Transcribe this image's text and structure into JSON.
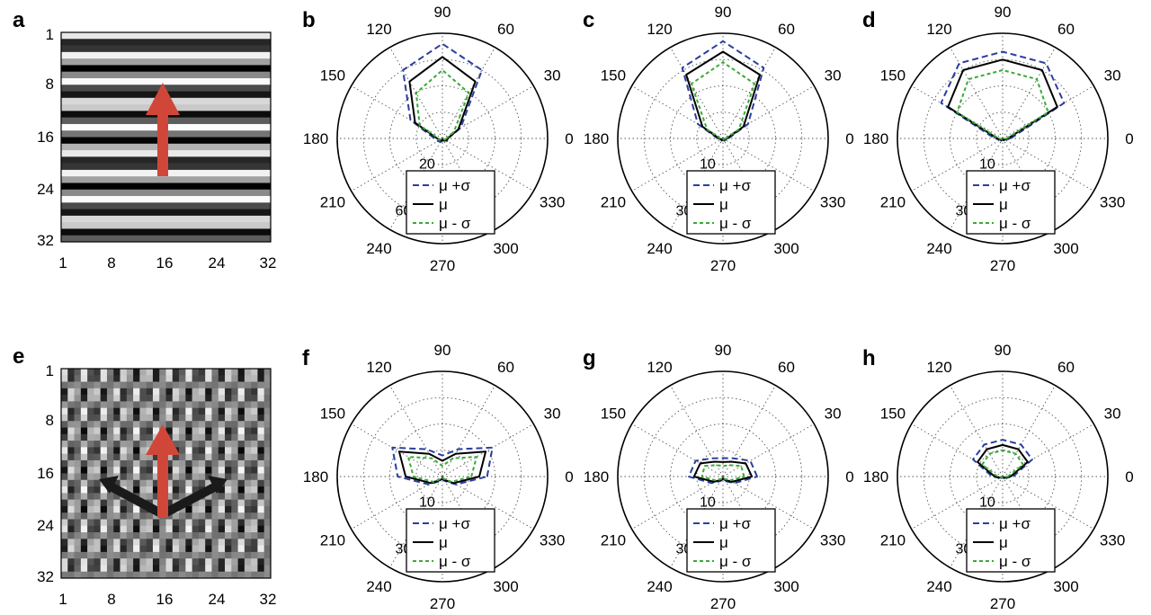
{
  "panels": {
    "a": {
      "letter": "a",
      "y_ticks": [
        "1",
        "8",
        "16",
        "24",
        "32"
      ],
      "x_ticks": [
        "1",
        "8",
        "16",
        "24",
        "32"
      ],
      "pattern": "horizontal-stripes"
    },
    "e": {
      "letter": "e",
      "y_ticks": [
        "1",
        "8",
        "16",
        "24",
        "32"
      ],
      "x_ticks": [
        "1",
        "8",
        "16",
        "24",
        "32"
      ],
      "pattern": "oblique-grid"
    }
  },
  "colors": {
    "mu_plus_sigma": "#2b3e9e",
    "mu": "#000000",
    "mu_minus_sigma": "#3aaa35",
    "arrow_red": "#d0473a",
    "arrow_black": "#1a1a1a"
  },
  "chart_data": [
    {
      "type": "line",
      "coord": "polar",
      "panel": "b",
      "angle_labels": [
        "0",
        "30",
        "60",
        "90",
        "120",
        "150",
        "180",
        "210",
        "240",
        "270",
        "300",
        "330"
      ],
      "radial_tick_labels": [
        "20",
        "40",
        "60"
      ],
      "r_max": 80,
      "angles_deg": [
        0,
        30,
        60,
        90,
        120,
        150,
        180,
        210,
        240,
        270,
        300,
        330
      ],
      "series": [
        {
          "name": "μ +σ",
          "style": "dashed",
          "values": [
            4,
            16,
            60,
            72,
            60,
            28,
            6,
            4,
            3,
            2,
            3,
            4
          ]
        },
        {
          "name": "μ",
          "style": "solid",
          "values": [
            4,
            14,
            50,
            62,
            50,
            24,
            4,
            2,
            2,
            1,
            2,
            3
          ]
        },
        {
          "name": "μ - σ",
          "style": "dotted",
          "values": [
            3,
            10,
            40,
            52,
            40,
            20,
            3,
            2,
            1,
            1,
            1,
            2
          ]
        }
      ],
      "legend": [
        "μ +σ",
        "μ",
        "μ - σ"
      ],
      "legend_position": "bottom"
    },
    {
      "type": "line",
      "coord": "polar",
      "panel": "c",
      "angle_labels": [
        "0",
        "30",
        "60",
        "90",
        "120",
        "150",
        "180",
        "210",
        "240",
        "270",
        "300",
        "330"
      ],
      "radial_tick_labels": [
        "10",
        "20",
        "30"
      ],
      "r_max": 40,
      "angles_deg": [
        0,
        30,
        60,
        90,
        120,
        150,
        180,
        210,
        240,
        270,
        300,
        330
      ],
      "series": [
        {
          "name": "μ +σ",
          "style": "dashed",
          "values": [
            2,
            11,
            31,
            37,
            31,
            11,
            2,
            1,
            1,
            0.5,
            1,
            1
          ]
        },
        {
          "name": "μ",
          "style": "solid",
          "values": [
            1.5,
            9,
            28,
            33,
            28,
            9,
            1.5,
            0.8,
            0.8,
            0.5,
            0.8,
            0.8
          ]
        },
        {
          "name": "μ - σ",
          "style": "dotted",
          "values": [
            1,
            7,
            24,
            29,
            24,
            7,
            1,
            0.5,
            0.5,
            0.5,
            0.5,
            0.5
          ]
        }
      ],
      "legend": [
        "μ +σ",
        "μ",
        "μ - σ"
      ],
      "legend_position": "bottom"
    },
    {
      "type": "line",
      "coord": "polar",
      "panel": "d",
      "angle_labels": [
        "0",
        "30",
        "60",
        "90",
        "120",
        "150",
        "180",
        "210",
        "240",
        "270",
        "300",
        "330"
      ],
      "radial_tick_labels": [
        "10",
        "20",
        "30"
      ],
      "r_max": 40,
      "angles_deg": [
        0,
        30,
        60,
        90,
        120,
        150,
        180,
        210,
        240,
        270,
        300,
        330
      ],
      "series": [
        {
          "name": "μ +σ",
          "style": "dashed",
          "values": [
            3,
            27,
            33,
            33,
            33,
            27,
            3,
            1,
            1,
            0.5,
            1,
            1
          ]
        },
        {
          "name": "μ",
          "style": "solid",
          "values": [
            2,
            24,
            30,
            30,
            30,
            24,
            2,
            0.8,
            0.8,
            0.5,
            0.8,
            0.8
          ]
        },
        {
          "name": "μ - σ",
          "style": "dotted",
          "values": [
            1.5,
            20,
            26,
            26,
            26,
            20,
            1.5,
            0.5,
            0.5,
            0.5,
            0.5,
            0.5
          ]
        }
      ],
      "legend": [
        "μ +σ",
        "μ",
        "μ - σ"
      ],
      "legend_position": "bottom"
    },
    {
      "type": "line",
      "coord": "polar",
      "panel": "f",
      "angle_labels": [
        "0",
        "30",
        "60",
        "90",
        "120",
        "150",
        "180",
        "210",
        "240",
        "270",
        "300",
        "330"
      ],
      "radial_tick_labels": [
        "10",
        "20",
        "30"
      ],
      "r_max": 40,
      "angles_deg": [
        0,
        30,
        60,
        90,
        120,
        150,
        180,
        210,
        240,
        270,
        300,
        330
      ],
      "series": [
        {
          "name": "μ +σ",
          "style": "dashed",
          "values": [
            17,
            22,
            12,
            8,
            12,
            22,
            17,
            6,
            2,
            1,
            2,
            6
          ]
        },
        {
          "name": "μ",
          "style": "solid",
          "values": [
            14,
            19,
            10,
            6,
            10,
            19,
            14,
            5,
            1.5,
            0.8,
            1.5,
            5
          ]
        },
        {
          "name": "μ - σ",
          "style": "dotted",
          "values": [
            11,
            15,
            8,
            4,
            8,
            15,
            11,
            4,
            1,
            0.5,
            1,
            4
          ]
        }
      ],
      "legend": [
        "μ +σ",
        "μ",
        "μ - σ"
      ],
      "legend_position": "bottom"
    },
    {
      "type": "line",
      "coord": "polar",
      "panel": "g",
      "angle_labels": [
        "0",
        "30",
        "60",
        "90",
        "120",
        "150",
        "180",
        "210",
        "240",
        "270",
        "300",
        "330"
      ],
      "radial_tick_labels": [
        "10",
        "20",
        "30"
      ],
      "r_max": 40,
      "angles_deg": [
        0,
        30,
        60,
        90,
        120,
        150,
        180,
        210,
        240,
        270,
        300,
        330
      ],
      "series": [
        {
          "name": "μ +σ",
          "style": "dashed",
          "values": [
            13,
            12,
            8,
            7,
            8,
            12,
            13,
            5,
            2,
            1,
            2,
            5
          ]
        },
        {
          "name": "μ",
          "style": "solid",
          "values": [
            11,
            10,
            6.5,
            5.5,
            6.5,
            10,
            11,
            4,
            1.5,
            0.8,
            1.5,
            4
          ]
        },
        {
          "name": "μ - σ",
          "style": "dotted",
          "values": [
            8,
            8,
            5,
            4,
            5,
            8,
            8,
            3,
            1,
            0.5,
            1,
            3
          ]
        }
      ],
      "legend": [
        "μ +σ",
        "μ",
        "μ - σ"
      ],
      "legend_position": "bottom"
    },
    {
      "type": "line",
      "coord": "polar",
      "panel": "h",
      "angle_labels": [
        "0",
        "30",
        "60",
        "90",
        "120",
        "150",
        "180",
        "210",
        "240",
        "270",
        "300",
        "330"
      ],
      "radial_tick_labels": [
        "10",
        "20",
        "30"
      ],
      "r_max": 40,
      "angles_deg": [
        0,
        30,
        60,
        90,
        120,
        150,
        180,
        210,
        240,
        270,
        300,
        330
      ],
      "series": [
        {
          "name": "μ +σ",
          "style": "dashed",
          "values": [
            4,
            13,
            14,
            14,
            14,
            13,
            4,
            1,
            0.8,
            0.5,
            0.8,
            1
          ]
        },
        {
          "name": "μ",
          "style": "solid",
          "values": [
            3,
            11,
            12,
            12,
            12,
            11,
            3,
            0.8,
            0.6,
            0.5,
            0.6,
            0.8
          ]
        },
        {
          "name": "μ - σ",
          "style": "dotted",
          "values": [
            2,
            9,
            10,
            10,
            10,
            9,
            2,
            0.5,
            0.5,
            0.5,
            0.5,
            0.5
          ]
        }
      ],
      "legend": [
        "μ +σ",
        "μ",
        "μ - σ"
      ],
      "legend_position": "bottom"
    }
  ]
}
